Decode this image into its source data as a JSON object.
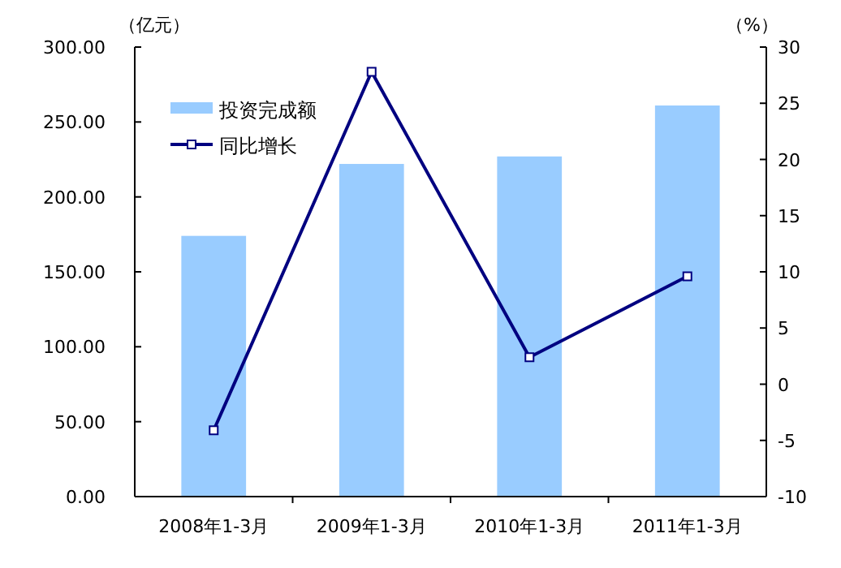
{
  "chart_data": {
    "type": "bar",
    "categories": [
      "2008年1-3月",
      "2009年1-3月",
      "2010年1-3月",
      "2011年1-3月"
    ],
    "series": [
      {
        "name": "投资完成额",
        "color": "#99ccff",
        "values": [
          174,
          222,
          227,
          261
        ]
      },
      {
        "name": "同比增长",
        "type": "line",
        "axis": "y2",
        "color": "#000080",
        "values": [
          -4.1,
          27.8,
          2.4,
          9.6
        ]
      }
    ],
    "ylabel": "（亿元）",
    "y2label": "（%）",
    "ylim": [
      0,
      300
    ],
    "yticks": [
      {
        "value": 0,
        "label": "0.00"
      },
      {
        "value": 50,
        "label": "50.00"
      },
      {
        "value": 100,
        "label": "100.00"
      },
      {
        "value": 150,
        "label": "150.00"
      },
      {
        "value": 200,
        "label": "200.00"
      },
      {
        "value": 250,
        "label": "250.00"
      },
      {
        "value": 300,
        "label": "300.00"
      }
    ],
    "y2lim": [
      -10,
      30
    ],
    "y2ticks": [
      -10,
      -5,
      0,
      5,
      10,
      15,
      20,
      25,
      30
    ],
    "marker": "square",
    "legend": "top left",
    "grid": false
  }
}
